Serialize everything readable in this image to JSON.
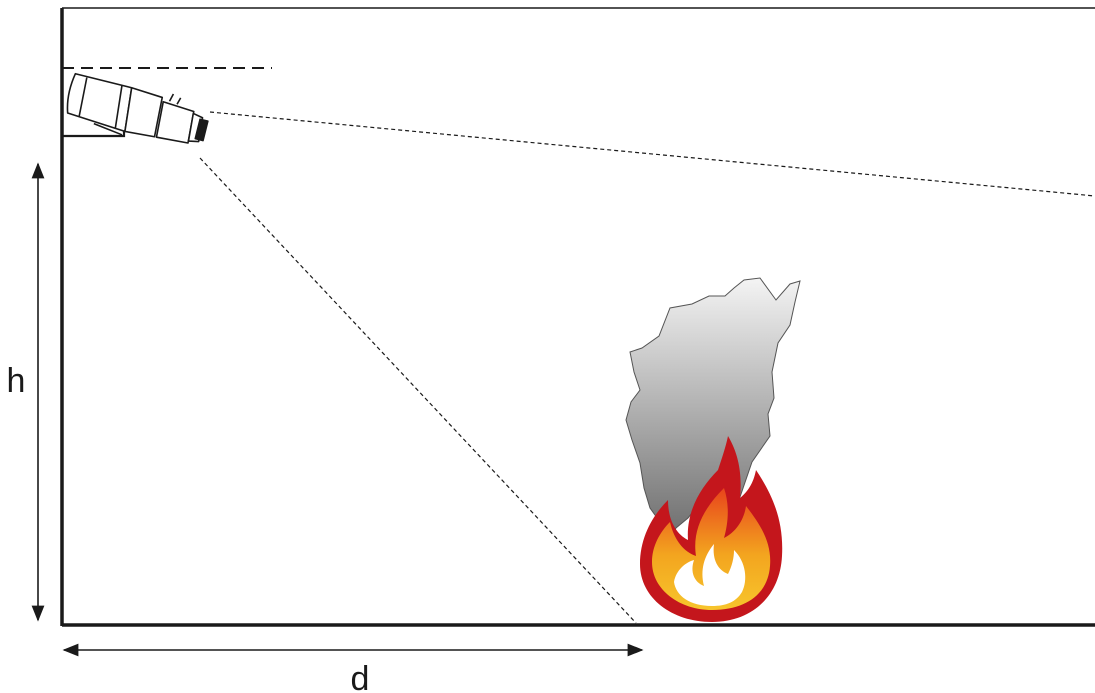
{
  "labels": {
    "height": "h",
    "distance": "d"
  },
  "icons": {
    "camera": "security-camera-icon",
    "fire": "fire-icon",
    "smoke": "smoke-icon"
  },
  "colors": {
    "line": "#1a1a1a",
    "flame_outer": "#c4161c",
    "flame_middle": "#f29a1f",
    "flame_inner": "#ffffff",
    "smoke_top": "#f2f2f2",
    "smoke_bottom": "#6e6e6e"
  }
}
